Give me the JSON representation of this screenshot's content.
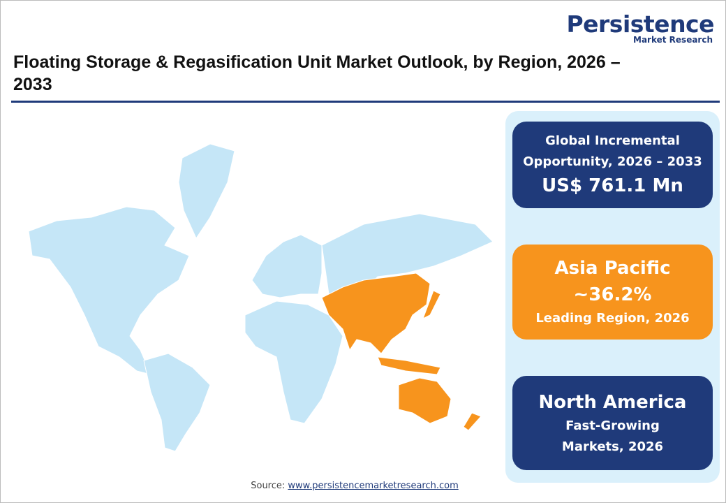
{
  "logo": {
    "name": "Persistence",
    "tagline": "Market Research"
  },
  "header": {
    "title": "Floating Storage & Regasification Unit Market Outlook, by Region, 2026 – 2033"
  },
  "cards": [
    {
      "label": "Global Incremental Opportunity, 2026 – 2033",
      "value": "US$ 761.1 Mn"
    },
    {
      "label": "Asia Pacific",
      "value": "~36.2%",
      "note": "Leading Region, 2026"
    },
    {
      "label": "North America",
      "note": "Fast-Growing Markets, 2026"
    }
  ],
  "footer": {
    "source_label": "Source:",
    "source_link": "www.persistencemarketresearch.com"
  }
}
